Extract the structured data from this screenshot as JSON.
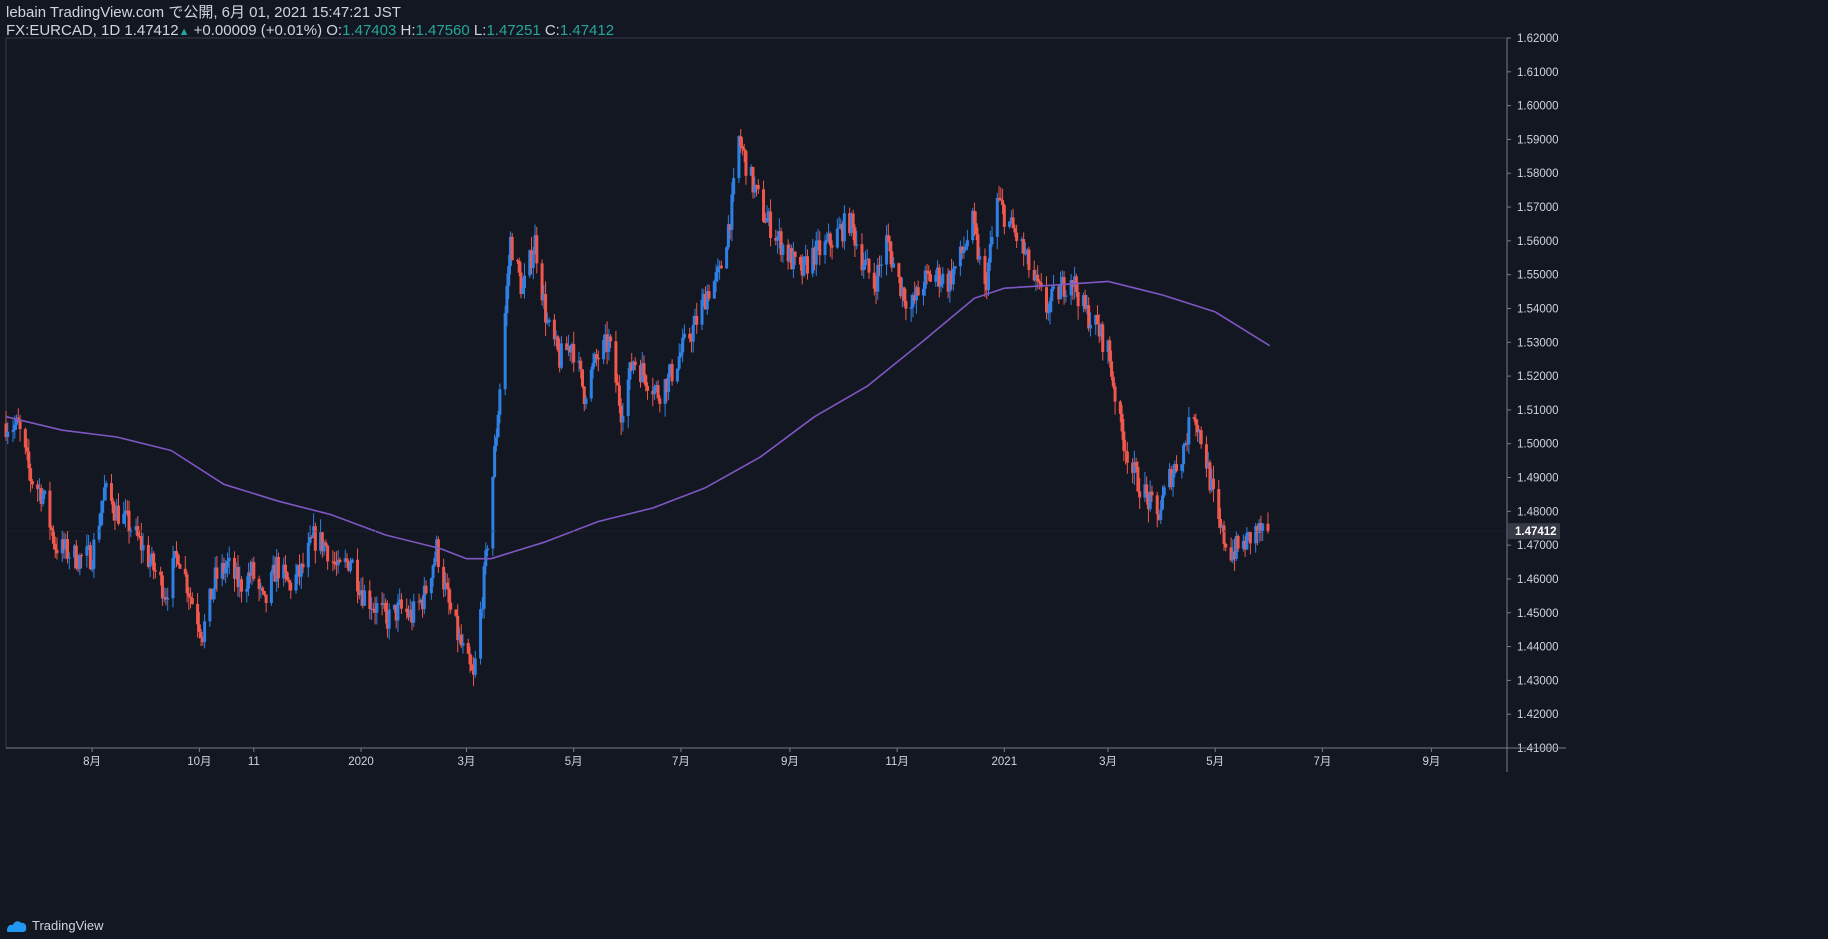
{
  "header": {
    "publisher": "lebain TradingView.com で公開, 6月 01, 2021 15:47:21 JST",
    "symbol": "FX:EURCAD, 1D",
    "last": "1.47412",
    "change": "+0.00009 (+0.01%)",
    "open_label": "O:",
    "open": "1.47403",
    "high_label": "H:",
    "high": "1.47560",
    "low_label": "L:",
    "low": "1.47251",
    "close_label": "C:",
    "close": "1.47412"
  },
  "footer": {
    "brand": "TradingView"
  },
  "colors": {
    "background": "#131722",
    "up": "#2f80e5",
    "down": "#f0584d",
    "ma": "#7e57c2",
    "text": "#d1d4dc",
    "price_tag": "#363a45"
  },
  "chart_data": {
    "type": "candlestick",
    "symbol": "FX:EURCAD",
    "interval": "1D",
    "y_ticks": [
      "1.62000",
      "1.61000",
      "1.60000",
      "1.59000",
      "1.58000",
      "1.57000",
      "1.56000",
      "1.55000",
      "1.54000",
      "1.53000",
      "1.52000",
      "1.51000",
      "1.50000",
      "1.49000",
      "1.48000",
      "1.47000",
      "1.46000",
      "1.45000",
      "1.44000",
      "1.43000",
      "1.42000",
      "1.41000"
    ],
    "ylim": [
      1.41,
      1.62
    ],
    "x_ticks": [
      {
        "label": "8月",
        "date": "2019-08-01"
      },
      {
        "label": "10月",
        "date": "2019-10-01"
      },
      {
        "label": "11",
        "date": "2019-11-01"
      },
      {
        "label": "2020",
        "date": "2020-01-01"
      },
      {
        "label": "3月",
        "date": "2020-03-01"
      },
      {
        "label": "5月",
        "date": "2020-05-01"
      },
      {
        "label": "7月",
        "date": "2020-07-01"
      },
      {
        "label": "9月",
        "date": "2020-09-01"
      },
      {
        "label": "11月",
        "date": "2020-11-01"
      },
      {
        "label": "2021",
        "date": "2021-01-01"
      },
      {
        "label": "3月",
        "date": "2021-03-01"
      },
      {
        "label": "5月",
        "date": "2021-05-01"
      },
      {
        "label": "7月",
        "date": "2021-07-01"
      },
      {
        "label": "9月",
        "date": "2021-09-01"
      }
    ],
    "xlim": [
      "2019-06-13",
      "2021-10-14"
    ],
    "last_price": "1.47412",
    "close_anchors": [
      [
        "2019-06-13",
        1.506
      ],
      [
        "2019-06-20",
        1.505
      ],
      [
        "2019-06-27",
        1.49
      ],
      [
        "2019-07-04",
        1.485
      ],
      [
        "2019-07-11",
        1.47
      ],
      [
        "2019-07-18",
        1.468
      ],
      [
        "2019-07-25",
        1.466
      ],
      [
        "2019-08-01",
        1.467
      ],
      [
        "2019-08-08",
        1.486
      ],
      [
        "2019-08-15",
        1.48
      ],
      [
        "2019-08-22",
        1.476
      ],
      [
        "2019-08-29",
        1.47
      ],
      [
        "2019-09-05",
        1.463
      ],
      [
        "2019-09-12",
        1.456
      ],
      [
        "2019-09-19",
        1.468
      ],
      [
        "2019-09-26",
        1.455
      ],
      [
        "2019-10-03",
        1.444
      ],
      [
        "2019-10-10",
        1.46
      ],
      [
        "2019-10-17",
        1.464
      ],
      [
        "2019-10-24",
        1.458
      ],
      [
        "2019-10-31",
        1.462
      ],
      [
        "2019-11-07",
        1.452
      ],
      [
        "2019-11-14",
        1.464
      ],
      [
        "2019-11-21",
        1.458
      ],
      [
        "2019-11-28",
        1.462
      ],
      [
        "2019-12-05",
        1.472
      ],
      [
        "2019-12-12",
        1.47
      ],
      [
        "2019-12-19",
        1.462
      ],
      [
        "2019-12-26",
        1.466
      ],
      [
        "2020-01-02",
        1.456
      ],
      [
        "2020-01-09",
        1.452
      ],
      [
        "2020-01-16",
        1.448
      ],
      [
        "2020-01-23",
        1.451
      ],
      [
        "2020-01-30",
        1.449
      ],
      [
        "2020-02-06",
        1.455
      ],
      [
        "2020-02-13",
        1.469
      ],
      [
        "2020-02-20",
        1.452
      ],
      [
        "2020-02-27",
        1.44
      ],
      [
        "2020-03-05",
        1.43
      ],
      [
        "2020-03-12",
        1.465
      ],
      [
        "2020-03-19",
        1.51
      ],
      [
        "2020-03-26",
        1.56
      ],
      [
        "2020-04-02",
        1.545
      ],
      [
        "2020-04-09",
        1.56
      ],
      [
        "2020-04-16",
        1.535
      ],
      [
        "2020-04-23",
        1.525
      ],
      [
        "2020-04-30",
        1.53
      ],
      [
        "2020-05-07",
        1.515
      ],
      [
        "2020-05-14",
        1.525
      ],
      [
        "2020-05-21",
        1.53
      ],
      [
        "2020-05-28",
        1.51
      ],
      [
        "2020-06-04",
        1.525
      ],
      [
        "2020-06-11",
        1.52
      ],
      [
        "2020-06-18",
        1.515
      ],
      [
        "2020-06-25",
        1.52
      ],
      [
        "2020-07-02",
        1.528
      ],
      [
        "2020-07-09",
        1.535
      ],
      [
        "2020-07-16",
        1.545
      ],
      [
        "2020-07-23",
        1.55
      ],
      [
        "2020-07-30",
        1.57
      ],
      [
        "2020-08-03",
        1.59
      ],
      [
        "2020-08-10",
        1.578
      ],
      [
        "2020-08-17",
        1.568
      ],
      [
        "2020-08-24",
        1.562
      ],
      [
        "2020-08-31",
        1.556
      ],
      [
        "2020-09-07",
        1.55
      ],
      [
        "2020-09-14",
        1.556
      ],
      [
        "2020-09-21",
        1.558
      ],
      [
        "2020-09-28",
        1.562
      ],
      [
        "2020-10-05",
        1.566
      ],
      [
        "2020-10-12",
        1.555
      ],
      [
        "2020-10-19",
        1.547
      ],
      [
        "2020-10-26",
        1.56
      ],
      [
        "2020-11-02",
        1.548
      ],
      [
        "2020-11-09",
        1.54
      ],
      [
        "2020-11-16",
        1.548
      ],
      [
        "2020-11-23",
        1.55
      ],
      [
        "2020-11-30",
        1.548
      ],
      [
        "2020-12-07",
        1.555
      ],
      [
        "2020-12-14",
        1.565
      ],
      [
        "2020-12-21",
        1.545
      ],
      [
        "2020-12-28",
        1.572
      ],
      [
        "2021-01-04",
        1.565
      ],
      [
        "2021-01-11",
        1.558
      ],
      [
        "2021-01-18",
        1.548
      ],
      [
        "2021-01-25",
        1.54
      ],
      [
        "2021-02-01",
        1.545
      ],
      [
        "2021-02-08",
        1.55
      ],
      [
        "2021-02-15",
        1.54
      ],
      [
        "2021-02-22",
        1.535
      ],
      [
        "2021-03-01",
        1.528
      ],
      [
        "2021-03-08",
        1.505
      ],
      [
        "2021-03-15",
        1.492
      ],
      [
        "2021-03-22",
        1.485
      ],
      [
        "2021-03-29",
        1.478
      ],
      [
        "2021-04-05",
        1.49
      ],
      [
        "2021-04-12",
        1.497
      ],
      [
        "2021-04-19",
        1.51
      ],
      [
        "2021-04-26",
        1.495
      ],
      [
        "2021-05-03",
        1.475
      ],
      [
        "2021-05-10",
        1.468
      ],
      [
        "2021-05-17",
        1.47
      ],
      [
        "2021-05-24",
        1.474
      ],
      [
        "2021-05-31",
        1.47412
      ]
    ],
    "series": [
      {
        "type": "line",
        "anchors": [
          [
            "2019-06-13",
            1.508
          ],
          [
            "2019-07-15",
            1.504
          ],
          [
            "2019-08-15",
            1.502
          ],
          [
            "2019-09-15",
            1.498
          ],
          [
            "2019-10-15",
            1.488
          ],
          [
            "2019-11-15",
            1.483
          ],
          [
            "2019-12-15",
            1.479
          ],
          [
            "2020-01-15",
            1.473
          ],
          [
            "2020-02-15",
            1.469
          ],
          [
            "2020-03-01",
            1.466
          ],
          [
            "2020-03-15",
            1.466
          ],
          [
            "2020-04-15",
            1.471
          ],
          [
            "2020-05-15",
            1.477
          ],
          [
            "2020-06-15",
            1.481
          ],
          [
            "2020-07-15",
            1.487
          ],
          [
            "2020-08-15",
            1.496
          ],
          [
            "2020-09-15",
            1.508
          ],
          [
            "2020-10-15",
            1.517
          ],
          [
            "2020-11-15",
            1.53
          ],
          [
            "2020-12-15",
            1.543
          ],
          [
            "2021-01-01",
            1.546
          ],
          [
            "2021-02-01",
            1.547
          ],
          [
            "2021-03-01",
            1.548
          ],
          [
            "2021-04-01",
            1.544
          ],
          [
            "2021-05-01",
            1.539
          ],
          [
            "2021-06-01",
            1.529
          ]
        ]
      }
    ]
  }
}
